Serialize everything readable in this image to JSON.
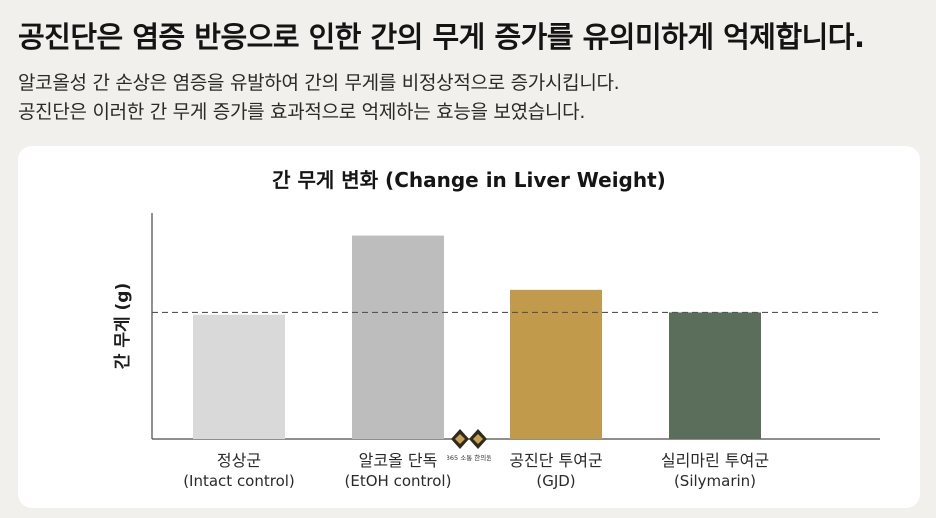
{
  "header": {
    "headline": "공진단은 염증 반응으로 인한 간의 무게 증가를 유의미하게 억제합니다.",
    "sub_line1": "알코올성 간 손상은 염증을 유발하여 간의 무게를 비정상적으로 증가시킵니다.",
    "sub_line2": "공진단은 이러한 간 무게 증가를 효과적으로 억제하는 효능을 보였습니다."
  },
  "logo": {
    "text": "365 소통 한의원"
  },
  "colors": {
    "normal": "#d9d9d9",
    "etoh": "#bdbdbd",
    "gjd": "#c19a4c",
    "silymarin": "#5a6e5b",
    "reference_line": "#555555"
  },
  "chart_data": {
    "type": "bar",
    "title": "간 무게 변화 (Change in Liver Weight)",
    "ylabel": "간 무게 (g)",
    "xlabel": "",
    "categories": [
      {
        "name": "정상군",
        "english": "(Intact control)"
      },
      {
        "name": "알코올 단독",
        "english": "(EtOH control)"
      },
      {
        "name": "공진단 투여군",
        "english": "(GJD)"
      },
      {
        "name": "실리마린 투여군",
        "english": "(Silymarin)"
      }
    ],
    "values": [
      55,
      90,
      66,
      56
    ],
    "reference_value": 56,
    "ylim": [
      0,
      100
    ],
    "y_ticks": false,
    "grid": false,
    "reference_line": "dashed"
  }
}
